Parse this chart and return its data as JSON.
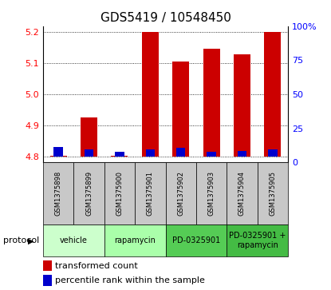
{
  "title": "GDS5419 / 10548450",
  "samples": [
    "GSM1375898",
    "GSM1375899",
    "GSM1375900",
    "GSM1375901",
    "GSM1375902",
    "GSM1375903",
    "GSM1375904",
    "GSM1375905"
  ],
  "red_values": [
    4.802,
    4.925,
    4.802,
    5.2,
    5.105,
    5.148,
    5.128,
    5.2
  ],
  "blue_percentile": [
    7,
    5,
    3,
    5,
    6,
    3,
    4,
    5
  ],
  "baseline": 4.8,
  "ylim_left": [
    4.78,
    5.22
  ],
  "ylim_right": [
    0,
    100
  ],
  "yticks_left": [
    4.8,
    4.9,
    5.0,
    5.1,
    5.2
  ],
  "yticks_right": [
    0,
    25,
    50,
    75,
    100
  ],
  "ytick_right_labels": [
    "0",
    "25",
    "50",
    "75",
    "100%"
  ],
  "protocols": [
    {
      "label": "vehicle",
      "start": 0,
      "end": 2,
      "color": "#ccffcc"
    },
    {
      "label": "rapamycin",
      "start": 2,
      "end": 4,
      "color": "#aaffaa"
    },
    {
      "label": "PD-0325901",
      "start": 4,
      "end": 6,
      "color": "#55cc55"
    },
    {
      "label": "PD-0325901 +\nrapamycin",
      "start": 6,
      "end": 8,
      "color": "#44bb44"
    }
  ],
  "bar_width": 0.55,
  "blue_bar_width": 0.3,
  "red_color": "#cc0000",
  "blue_color": "#0000cc",
  "sample_bg_color": "#c8c8c8",
  "title_fontsize": 11,
  "tick_fontsize": 8,
  "legend_fontsize": 8
}
